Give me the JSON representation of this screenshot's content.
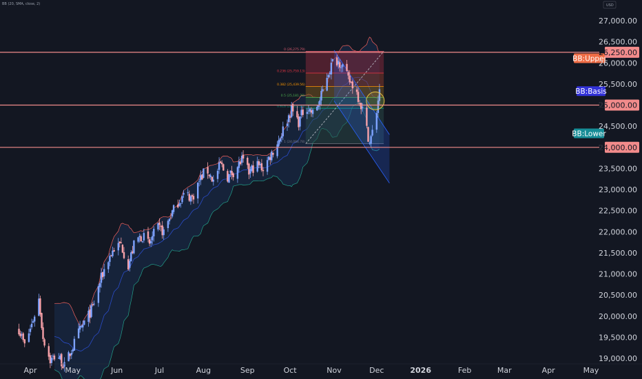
{
  "indicator_label": "BB (20, SMA, close, 2)",
  "currency": "USD",
  "colors": {
    "background": "#131722",
    "up": "#7ea3ff",
    "down": "#f7a1a8",
    "bb_upper": "#f1605b",
    "bb_basis": "#2a4cc9",
    "bb_lower": "#23a08a",
    "bb_fill": "#1c3a66",
    "hline": "#f28b8b",
    "tag_upper": "#ef6c45",
    "tag_basis": "#3232d8",
    "tag_lower": "#168c96",
    "tag_price": "#f28b8b"
  },
  "chart_data": {
    "type": "candlestick",
    "y_ticks": [
      19000,
      19500,
      20000,
      20500,
      21000,
      21500,
      22000,
      22500,
      23000,
      23500,
      24000,
      24500,
      25000,
      25500,
      26000,
      26500,
      27000
    ],
    "y_tick_labels": [
      "19,000.00",
      "19,500.00",
      "20,000.00",
      "20,500.00",
      "21,000.00",
      "21,500.00",
      "22,000.00",
      "22,500.00",
      "23,000.00",
      "23,500.00",
      "24,000.00",
      "24,500.00",
      "25,000.00",
      "25,500.00",
      "26,000.00",
      "26,500.00",
      "27,000.00"
    ],
    "x_ticks": [
      {
        "label": "Apr",
        "date": "2025-04-01"
      },
      {
        "label": "May",
        "date": "2025-05-01"
      },
      {
        "label": "Jun",
        "date": "2025-06-01"
      },
      {
        "label": "Jul",
        "date": "2025-07-01"
      },
      {
        "label": "Aug",
        "date": "2025-08-01"
      },
      {
        "label": "Sep",
        "date": "2025-09-01"
      },
      {
        "label": "Oct",
        "date": "2025-10-01"
      },
      {
        "label": "Nov",
        "date": "2025-11-01"
      },
      {
        "label": "Dec",
        "date": "2025-12-01"
      },
      {
        "label": "2026",
        "date": "2026-01-01",
        "bold": true
      },
      {
        "label": "Feb",
        "date": "2026-02-01"
      },
      {
        "label": "Mar",
        "date": "2026-03-01"
      },
      {
        "label": "Apr",
        "date": "2026-04-01"
      },
      {
        "label": "May",
        "date": "2026-05-01"
      }
    ],
    "price_path": [
      [
        "2025-03-24",
        19700
      ],
      [
        "2025-03-28",
        19300
      ],
      [
        "2025-04-02",
        19800
      ],
      [
        "2025-04-07",
        20400
      ],
      [
        "2025-04-10",
        19500
      ],
      [
        "2025-04-15",
        18950
      ],
      [
        "2025-04-20",
        19100
      ],
      [
        "2025-04-25",
        18800
      ],
      [
        "2025-04-30",
        19200
      ],
      [
        "2025-05-05",
        19600
      ],
      [
        "2025-05-10",
        19900
      ],
      [
        "2025-05-15",
        20200
      ],
      [
        "2025-05-20",
        20800
      ],
      [
        "2025-05-25",
        21300
      ],
      [
        "2025-05-30",
        21600
      ],
      [
        "2025-06-04",
        21700
      ],
      [
        "2025-06-09",
        21200
      ],
      [
        "2025-06-14",
        21800
      ],
      [
        "2025-06-19",
        21900
      ],
      [
        "2025-06-24",
        21700
      ],
      [
        "2025-06-29",
        22100
      ],
      [
        "2025-07-04",
        22000
      ],
      [
        "2025-07-09",
        22400
      ],
      [
        "2025-07-14",
        22700
      ],
      [
        "2025-07-19",
        22900
      ],
      [
        "2025-07-24",
        22800
      ],
      [
        "2025-07-29",
        23200
      ],
      [
        "2025-08-03",
        23500
      ],
      [
        "2025-08-08",
        23200
      ],
      [
        "2025-08-13",
        23600
      ],
      [
        "2025-08-18",
        23300
      ],
      [
        "2025-08-23",
        23450
      ],
      [
        "2025-08-28",
        23700
      ],
      [
        "2025-09-02",
        23400
      ],
      [
        "2025-09-07",
        23600
      ],
      [
        "2025-09-12",
        23500
      ],
      [
        "2025-09-17",
        23800
      ],
      [
        "2025-09-22",
        24100
      ],
      [
        "2025-09-27",
        24500
      ],
      [
        "2025-10-02",
        24900
      ],
      [
        "2025-10-07",
        24600
      ],
      [
        "2025-10-12",
        25000
      ],
      [
        "2025-10-17",
        24800
      ],
      [
        "2025-10-22",
        25100
      ],
      [
        "2025-10-27",
        25700
      ],
      [
        "2025-11-01",
        26100
      ],
      [
        "2025-11-06",
        26000
      ],
      [
        "2025-11-11",
        25600
      ],
      [
        "2025-11-16",
        25400
      ],
      [
        "2025-11-21",
        24900
      ],
      [
        "2025-11-26",
        24100
      ],
      [
        "2025-11-30",
        24600
      ],
      [
        "2025-12-03",
        25400
      ]
    ],
    "horizontal_lines": [
      {
        "value": 26250,
        "label": "26,250.00"
      },
      {
        "value": 25000,
        "label": "25,000.00"
      },
      {
        "value": 24000,
        "label": "24,000.00"
      }
    ],
    "bb_labels": {
      "upper": "BB:Upper",
      "basis": "BB:Basis",
      "lower": "BB:Lower"
    },
    "fib_retracement": {
      "date_start": "2025-10-12",
      "date_end": "2025-12-06",
      "levels": [
        {
          "ratio": 0,
          "value": 26275.79,
          "label": "0 (26,275.79)",
          "color": "#e05d73"
        },
        {
          "ratio": 0.236,
          "value": 25759.13,
          "label": "0.236 (25,759.13)",
          "color": "#f23645"
        },
        {
          "ratio": 0.382,
          "value": 25439.56,
          "label": "0.382 (25,439.56)",
          "color": "#ff9800"
        },
        {
          "ratio": 0.5,
          "value": 25181.28,
          "label": "0.5 (25,181.28)",
          "color": "#4caf50"
        },
        {
          "ratio": 0.618,
          "value": 24922.99,
          "label": "0.618 (24,922.99)",
          "color": "#089981"
        },
        {
          "ratio": 1,
          "value": 24086.78,
          "label": "1 (24,086.78)",
          "color": "#787b86"
        }
      ]
    },
    "channel": {
      "upper": [
        [
          "2025-11-01",
          26300
        ],
        [
          "2025-12-10",
          24300
        ]
      ],
      "lower": [
        [
          "2025-11-01",
          25100
        ],
        [
          "2025-12-10",
          23150
        ]
      ]
    },
    "trend_line": [
      [
        "2025-10-12",
        24086
      ],
      [
        "2025-12-06",
        26275
      ]
    ],
    "highlight_circle": {
      "date": "2025-11-30",
      "value": 25100
    }
  }
}
